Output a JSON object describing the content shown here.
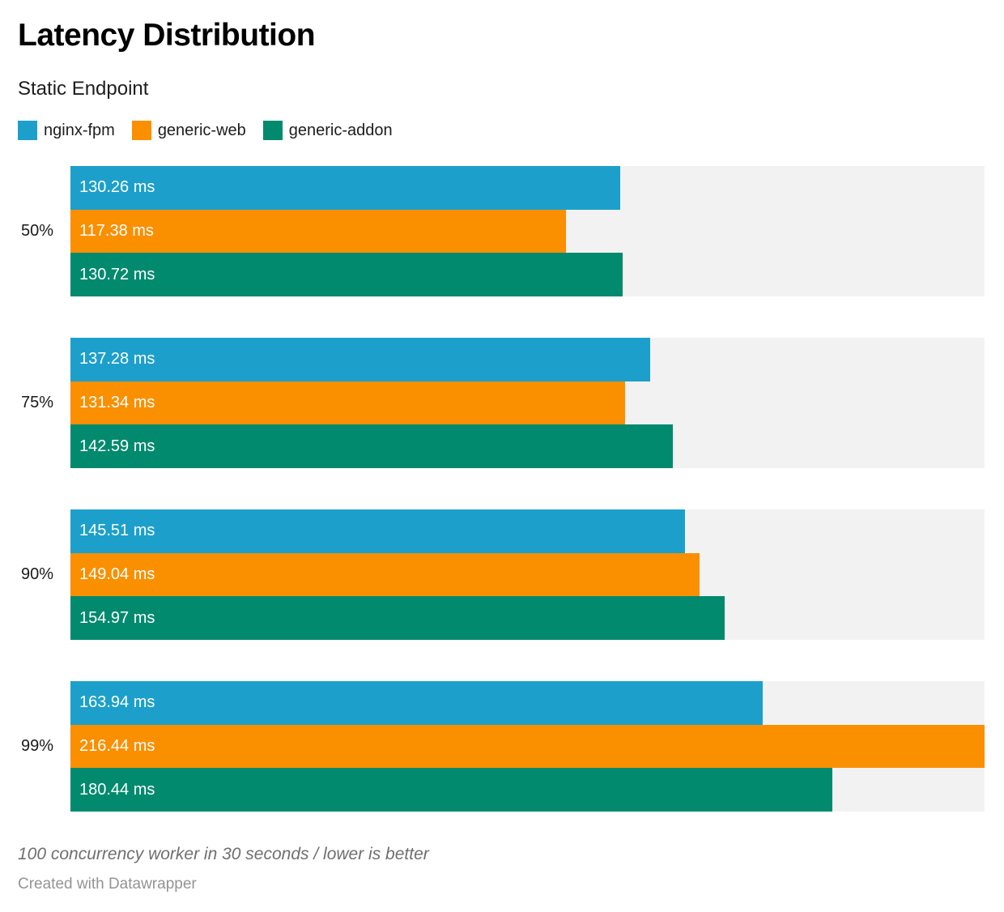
{
  "header": {
    "title": "Latency Distribution",
    "subtitle": "Static Endpoint"
  },
  "chart_data": {
    "type": "bar",
    "orientation": "horizontal",
    "title": "Latency Distribution",
    "subtitle": "Static Endpoint",
    "xlabel": "",
    "ylabel": "",
    "unit": "ms",
    "value_suffix": " ms",
    "axis_max": 216.44,
    "grid": false,
    "legend_position": "top",
    "track_color": "#f2f2f2",
    "categories": [
      "50%",
      "75%",
      "90%",
      "99%"
    ],
    "series": [
      {
        "name": "nginx-fpm",
        "color": "#1ca0cb",
        "values": [
          130.26,
          137.28,
          145.51,
          163.94
        ]
      },
      {
        "name": "generic-web",
        "color": "#fa8f00",
        "values": [
          117.38,
          131.34,
          149.04,
          216.44
        ]
      },
      {
        "name": "generic-addon",
        "color": "#028a6e",
        "values": [
          130.72,
          142.59,
          154.97,
          180.44
        ]
      }
    ]
  },
  "footer": {
    "note": "100 concurrency worker in 30 seconds / lower is better",
    "attribution": "Created with Datawrapper"
  }
}
